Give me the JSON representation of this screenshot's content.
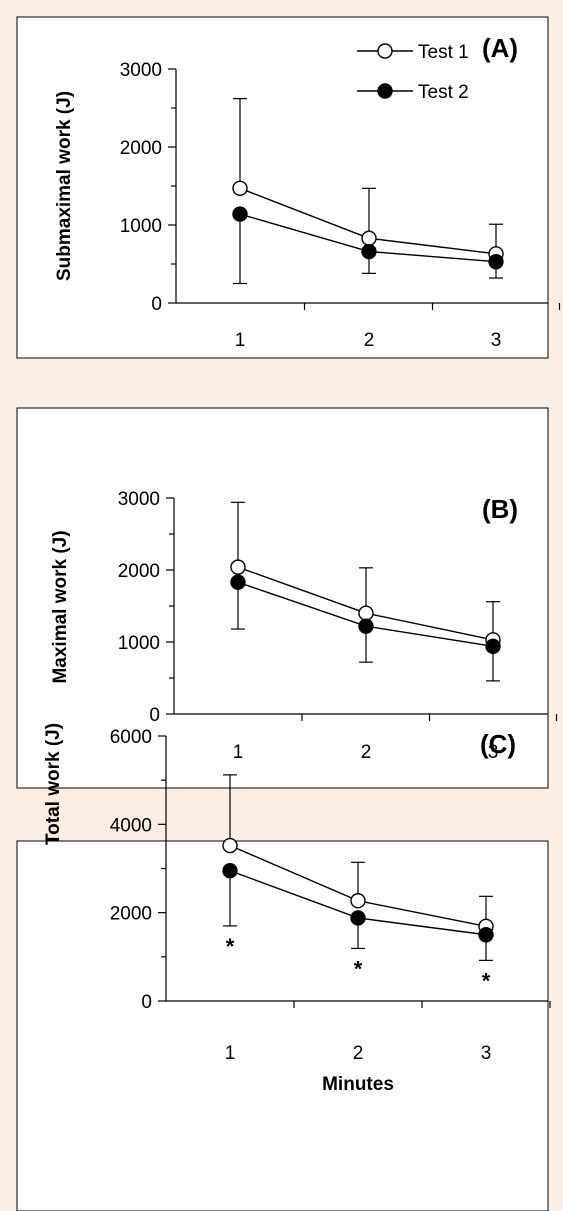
{
  "chart_data": [
    {
      "type": "line",
      "panel_label": "(A)",
      "ylabel": "Submaximal work (J)",
      "xlabel": "",
      "x": [
        1,
        2,
        3
      ],
      "xticks": [
        "1",
        "2",
        "3"
      ],
      "ylim": [
        0,
        3000
      ],
      "yticks": [
        0,
        1000,
        2000,
        3000
      ],
      "ytick_labels": [
        "0",
        "1000",
        "2000",
        "3000"
      ],
      "series": [
        {
          "name": "Test 1",
          "marker": "open-circle",
          "values": [
            1470,
            830,
            630
          ],
          "error_up": [
            1150,
            640,
            380
          ]
        },
        {
          "name": "Test 2",
          "marker": "filled-circle",
          "values": [
            1140,
            660,
            530
          ],
          "error_down": [
            890,
            280,
            210
          ]
        }
      ],
      "legend": {
        "position": "top-right",
        "entries": [
          "Test 1",
          "Test 2"
        ]
      },
      "annotations": []
    },
    {
      "type": "line",
      "panel_label": "(B)",
      "ylabel": "Maximal work (J)",
      "xlabel": "",
      "x": [
        1,
        2,
        3
      ],
      "xticks": [
        "1",
        "2",
        "3"
      ],
      "ylim": [
        0,
        3000
      ],
      "yticks": [
        0,
        1000,
        2000,
        3000
      ],
      "ytick_labels": [
        "0",
        "1000",
        "2000",
        "3000"
      ],
      "series": [
        {
          "name": "Test 1",
          "marker": "open-circle",
          "values": [
            2040,
            1400,
            1030
          ],
          "error_up": [
            900,
            630,
            530
          ]
        },
        {
          "name": "Test 2",
          "marker": "filled-circle",
          "values": [
            1830,
            1220,
            940
          ],
          "error_down": [
            650,
            500,
            480
          ]
        }
      ],
      "annotations": []
    },
    {
      "type": "line",
      "panel_label": "(C)",
      "ylabel": "Total work (J)",
      "xlabel": "Minutes",
      "x": [
        1,
        2,
        3
      ],
      "xticks": [
        "1",
        "2",
        "3"
      ],
      "ylim": [
        0,
        6000
      ],
      "yticks": [
        0,
        2000,
        4000,
        6000
      ],
      "ytick_labels": [
        "0",
        "2000",
        "4000",
        "6000"
      ],
      "series": [
        {
          "name": "Test 1",
          "marker": "open-circle",
          "values": [
            3520,
            2270,
            1690
          ],
          "error_up": [
            1600,
            870,
            680
          ]
        },
        {
          "name": "Test 2",
          "marker": "filled-circle",
          "values": [
            2950,
            1880,
            1500
          ],
          "error_down": [
            1250,
            690,
            580
          ]
        }
      ],
      "annotations": [
        {
          "x": 1,
          "text": "*"
        },
        {
          "x": 2,
          "text": "*"
        },
        {
          "x": 3,
          "text": "*"
        }
      ]
    }
  ]
}
